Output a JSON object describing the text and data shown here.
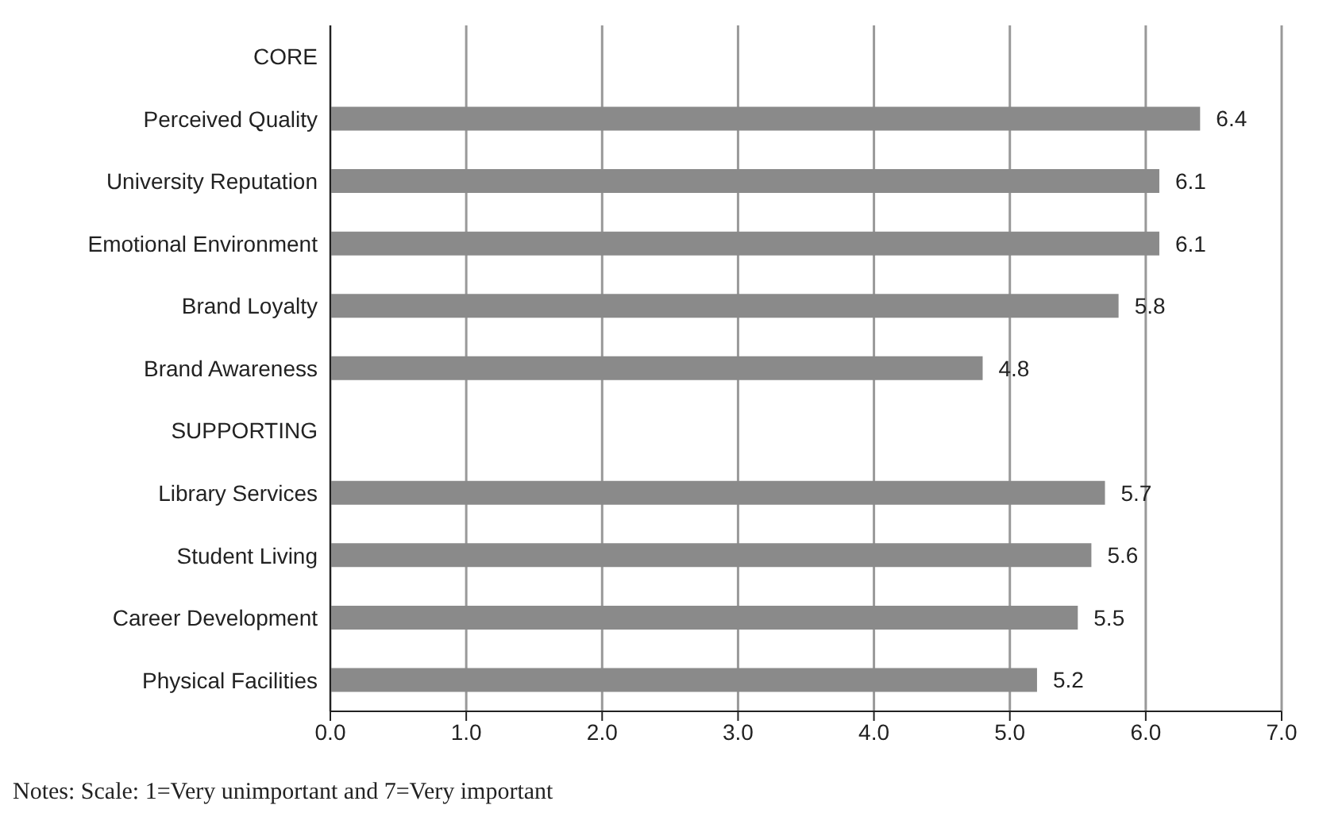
{
  "chart_data": {
    "type": "bar",
    "orientation": "horizontal",
    "categories": [
      "CORE",
      "Perceived Quality",
      "University Reputation",
      "Emotional Environment",
      "Brand Loyalty",
      "Brand Awareness",
      "SUPPORTING",
      "Library Services",
      "Student Living",
      "Career Development",
      "Physical Facilities"
    ],
    "values": [
      null,
      6.4,
      6.1,
      6.1,
      5.8,
      4.8,
      null,
      5.7,
      5.6,
      5.5,
      5.2
    ],
    "color": "#8a8a8a",
    "xlim": [
      0,
      7
    ],
    "xticks": [
      {
        "value": 0,
        "label": "0.0"
      },
      {
        "value": 1,
        "label": "1.0"
      },
      {
        "value": 2,
        "label": "2.0"
      },
      {
        "value": 3,
        "label": "3.0"
      },
      {
        "value": 4,
        "label": "4.0"
      },
      {
        "value": 5,
        "label": "5.0"
      },
      {
        "value": 6,
        "label": "6.0"
      },
      {
        "value": 7,
        "label": "7.0"
      }
    ],
    "grid": "x",
    "data_labels": true,
    "annotations": [
      "Notes: Scale: 1=Very unimportant and 7=Very important"
    ]
  }
}
